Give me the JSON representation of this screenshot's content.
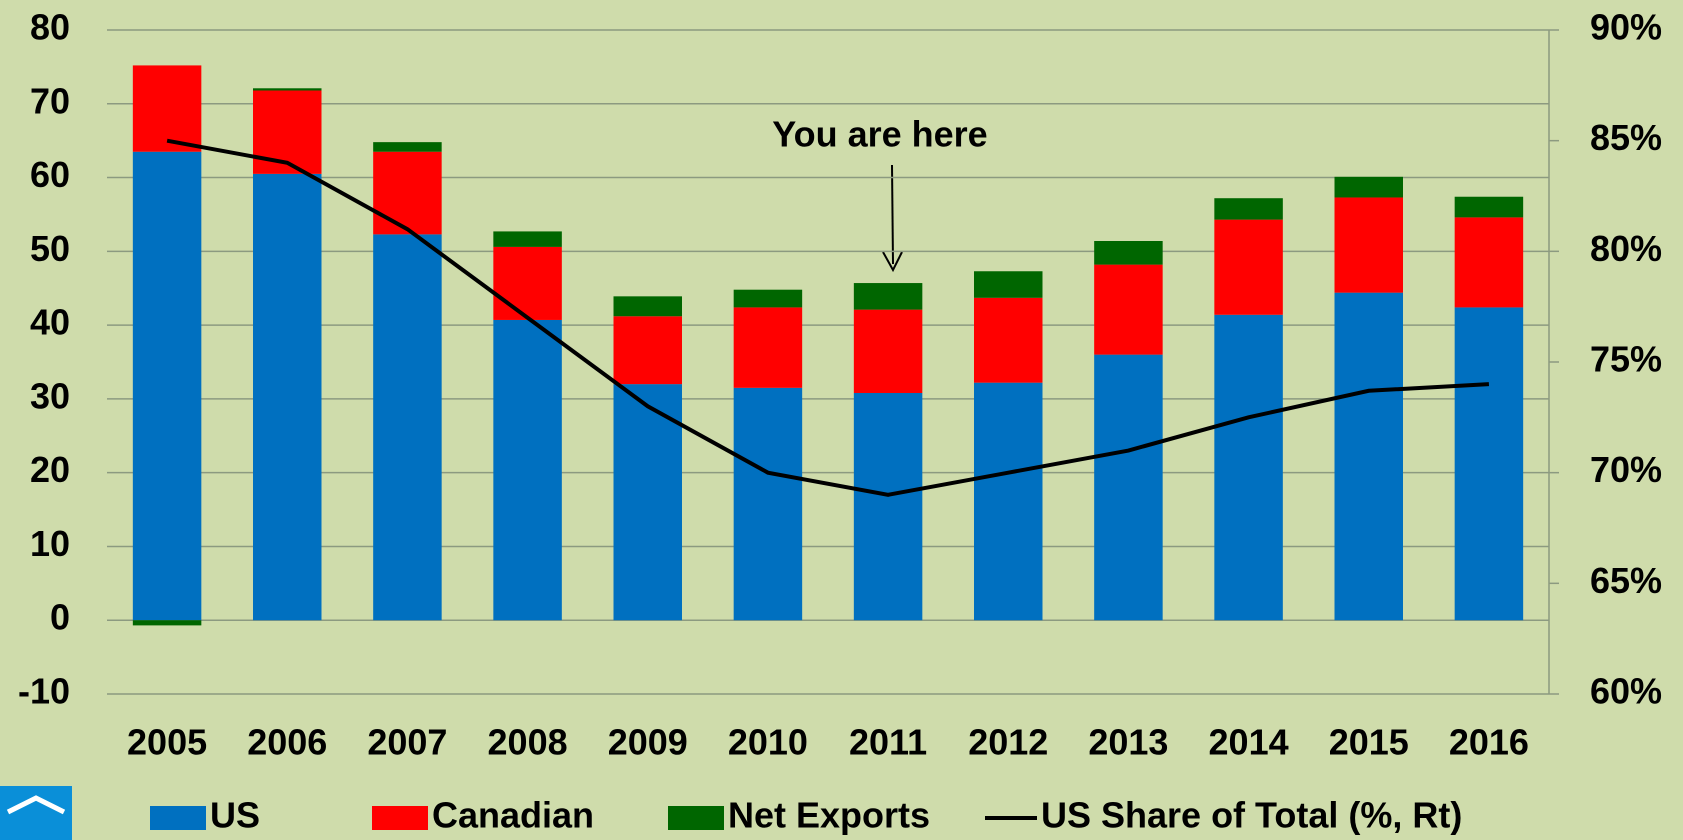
{
  "chart_data": {
    "type": "bar",
    "stacked": true,
    "categories": [
      "2005",
      "2006",
      "2007",
      "2008",
      "2009",
      "2010",
      "2011",
      "2012",
      "2013",
      "2014",
      "2015",
      "2016"
    ],
    "series": [
      {
        "name": "US",
        "color": "#0070c0",
        "values": [
          63.5,
          60.5,
          52.3,
          40.7,
          32,
          31.5,
          30.8,
          32.2,
          36,
          41.4,
          44.4,
          42.4
        ]
      },
      {
        "name": "Canadian",
        "color": "#ff0000",
        "values": [
          11.7,
          11.3,
          11.2,
          9.9,
          9.2,
          10.9,
          11.3,
          11.5,
          12.2,
          12.9,
          12.9,
          12.2
        ]
      },
      {
        "name": "Net Exports",
        "color": "#006600",
        "values": [
          -0.7,
          0.3,
          1.3,
          2.1,
          2.7,
          2.4,
          3.6,
          3.6,
          3.2,
          2.9,
          2.8,
          2.8
        ]
      },
      {
        "name": "US Share of Total (%, Rt)",
        "color": "#000000",
        "type": "line",
        "axis": "y2",
        "values": [
          85,
          84,
          81,
          77,
          73,
          70,
          69,
          70,
          71,
          72.5,
          73.7,
          74
        ]
      }
    ],
    "ylim": [
      -10,
      80
    ],
    "yticks": [
      -10,
      0,
      10,
      20,
      30,
      40,
      50,
      60,
      70,
      80
    ],
    "y2lim": [
      60,
      90
    ],
    "y2ticks": [
      {
        "value": 60,
        "label": "60%"
      },
      {
        "value": 65,
        "label": "65%"
      },
      {
        "value": 70,
        "label": "70%"
      },
      {
        "value": 75,
        "label": "75%"
      },
      {
        "value": 80,
        "label": "80%"
      },
      {
        "value": 85,
        "label": "85%"
      },
      {
        "value": 90,
        "label": "90%"
      }
    ],
    "annotation": "You are here",
    "grid": true,
    "legend": "bottom"
  }
}
